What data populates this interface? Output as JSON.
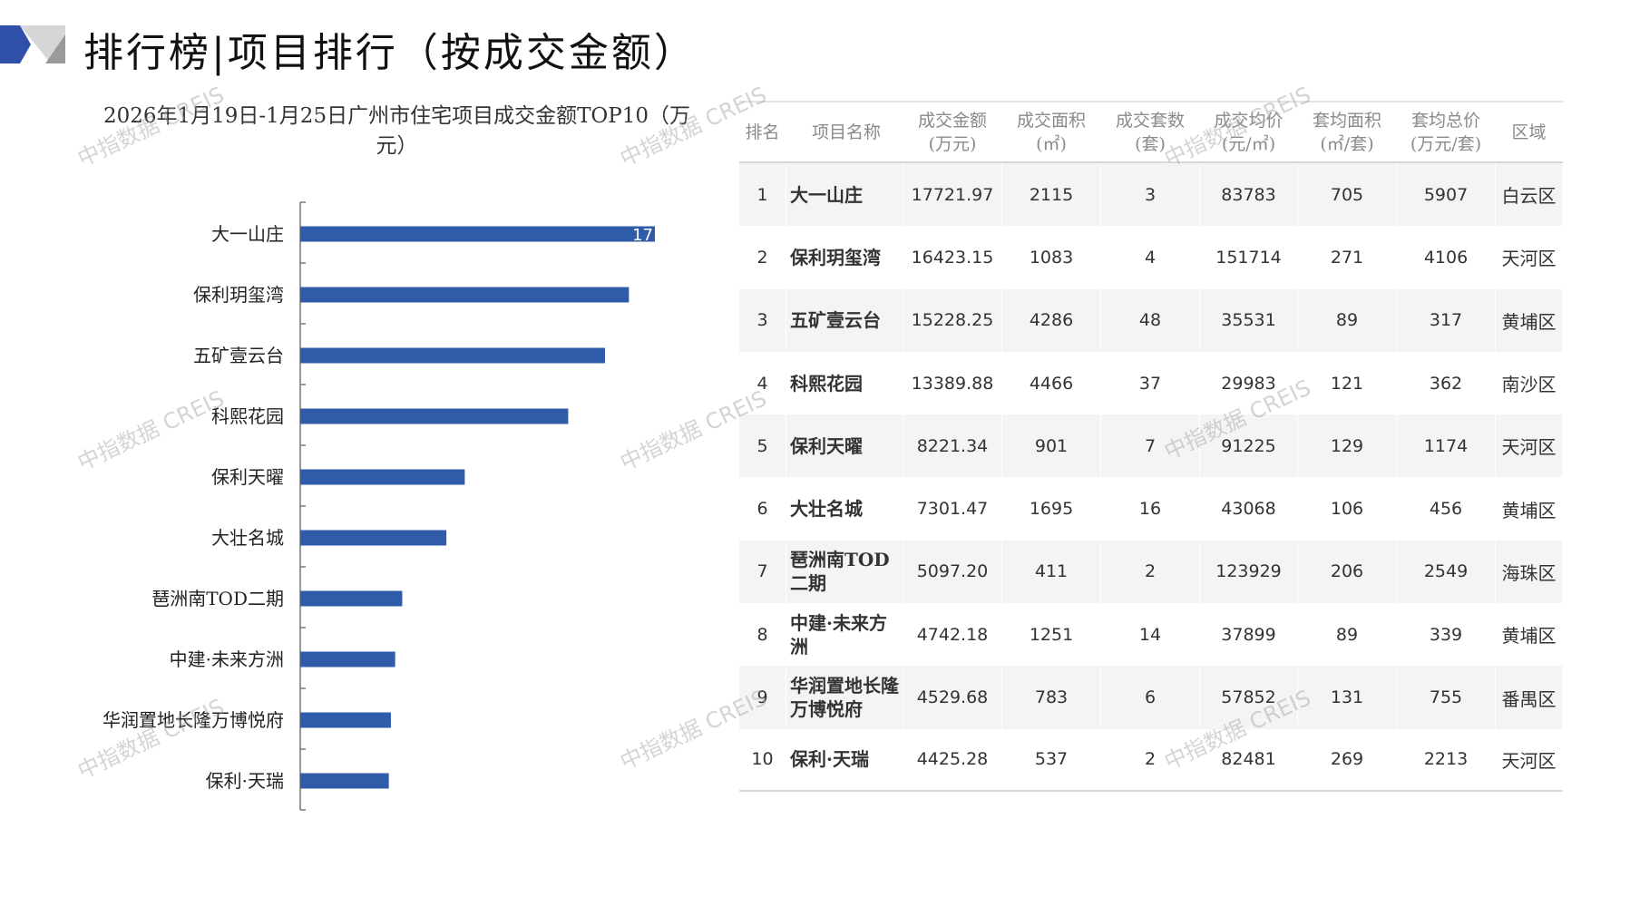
{
  "page_title": "排行榜|项目排行（按成交金额）",
  "watermark": "中指数据 CREIS",
  "colors": {
    "bar": "#2f5ba8",
    "logo_blue": "#2f4fa8",
    "logo_gray": "#9a9a9a"
  },
  "chart_data": {
    "type": "bar",
    "orientation": "horizontal",
    "title": "2026年1月19日-1月25日广州市住宅项目成交金额TOP10（万元）",
    "title_line1": "2026年1月19日-1月25日广州市住宅项目成交金额TOP10（万",
    "title_line2": "元）",
    "categories": [
      "大一山庄",
      "保利玥玺湾",
      "五矿壹云台",
      "科熙花园",
      "保利天曜",
      "大壮名城",
      "琶洲南TOD二期",
      "中建·未来方洲",
      "华润置地长隆万博悦府",
      "保利·天瑞"
    ],
    "values": [
      17721.97,
      16423.15,
      15228.25,
      13389.88,
      8221.34,
      7301.47,
      5097.2,
      4742.18,
      4529.68,
      4425.28
    ],
    "data_label_visible": "17",
    "xlabel": "",
    "ylabel": "",
    "xlim": [
      0,
      17721.97
    ],
    "grid": false
  },
  "table": {
    "headers": [
      [
        "排名",
        ""
      ],
      [
        "项目名称",
        ""
      ],
      [
        "成交金额",
        "(万元)"
      ],
      [
        "成交面积",
        "(㎡)"
      ],
      [
        "成交套数",
        "(套)"
      ],
      [
        "成交均价",
        "(元/㎡)"
      ],
      [
        "套均面积",
        "(㎡/套)"
      ],
      [
        "套均总价",
        "(万元/套)"
      ],
      [
        "区域",
        ""
      ]
    ],
    "rows": [
      [
        "1",
        "大一山庄",
        "17721.97",
        "2115",
        "3",
        "83783",
        "705",
        "5907",
        "白云区"
      ],
      [
        "2",
        "保利玥玺湾",
        "16423.15",
        "1083",
        "4",
        "151714",
        "271",
        "4106",
        "天河区"
      ],
      [
        "3",
        "五矿壹云台",
        "15228.25",
        "4286",
        "48",
        "35531",
        "89",
        "317",
        "黄埔区"
      ],
      [
        "4",
        "科熙花园",
        "13389.88",
        "4466",
        "37",
        "29983",
        "121",
        "362",
        "南沙区"
      ],
      [
        "5",
        "保利天曜",
        "8221.34",
        "901",
        "7",
        "91225",
        "129",
        "1174",
        "天河区"
      ],
      [
        "6",
        "大壮名城",
        "7301.47",
        "1695",
        "16",
        "43068",
        "106",
        "456",
        "黄埔区"
      ],
      [
        "7",
        "琶洲南TOD二期",
        "5097.20",
        "411",
        "2",
        "123929",
        "206",
        "2549",
        "海珠区"
      ],
      [
        "8",
        "中建·未来方洲",
        "4742.18",
        "1251",
        "14",
        "37899",
        "89",
        "339",
        "黄埔区"
      ],
      [
        "9",
        "华润置地长隆万博悦府",
        "4529.68",
        "783",
        "6",
        "57852",
        "131",
        "755",
        "番禺区"
      ],
      [
        "10",
        "保利·天瑞",
        "4425.28",
        "537",
        "2",
        "82481",
        "269",
        "2213",
        "天河区"
      ]
    ]
  }
}
